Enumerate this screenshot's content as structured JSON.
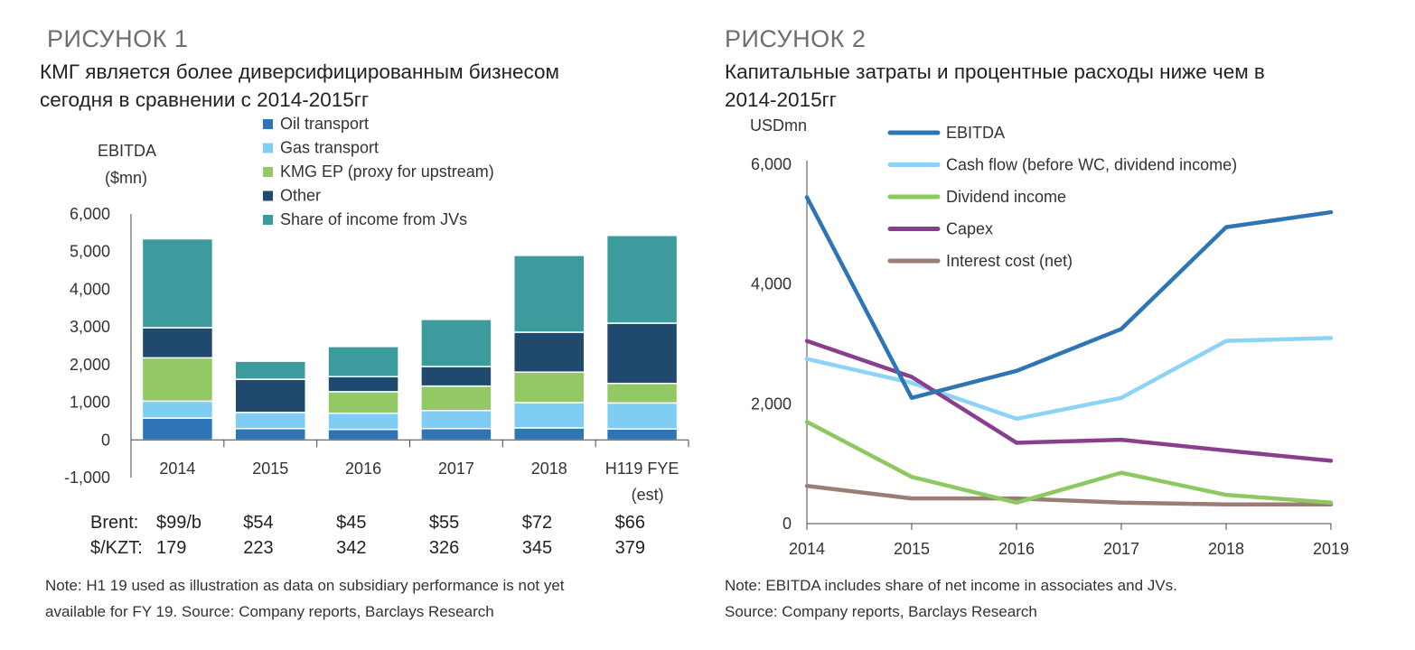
{
  "figure1": {
    "label": "РИСУНОК 1",
    "title_line1": "КМГ является более диверсифицированным бизнесом",
    "title_line2": "сегодня в сравнении с 2014-2015гг",
    "note_line1": "Note: H1 19 used as illustration as data on subsidiary performance is not yet",
    "note_line2": "available for FY 19. Source: Company reports, Barclays Research"
  },
  "figure2": {
    "label": "РИСУНОК 2",
    "title_line1": "Капитальные затраты и процентные расходы ниже чем в",
    "title_line2": "2014-2015гг",
    "note_line1": "Note: EBITDA includes share of net income in associates and JVs.",
    "note_line2": "Source: Company reports, Barclays Research"
  },
  "chart_data": [
    {
      "type": "bar",
      "stacked": true,
      "ylabel_line1": "EBITDA",
      "ylabel_line2": "($mn)",
      "ylim": [
        -1000,
        6000
      ],
      "yticks": [
        "6,000",
        "5,000",
        "4,000",
        "3,000",
        "2,000",
        "1,000",
        "0",
        "-1,000"
      ],
      "ytick_values": [
        6000,
        5000,
        4000,
        3000,
        2000,
        1000,
        0,
        -1000
      ],
      "categories": [
        "2014",
        "2015",
        "2016",
        "2017",
        "2018",
        "H119 FYE"
      ],
      "category_sublabels": [
        "",
        "",
        "",
        "",
        "",
        "(est)"
      ],
      "series": [
        {
          "name": "Oil transport",
          "color": "#2e75b6",
          "values": [
            580,
            300,
            280,
            300,
            320,
            290
          ]
        },
        {
          "name": "Gas transport",
          "color": "#7fcdf2",
          "values": [
            450,
            430,
            430,
            480,
            670,
            690
          ]
        },
        {
          "name": "KMG EP (proxy for upstream)",
          "color": "#92c965",
          "values": [
            1150,
            0,
            570,
            650,
            810,
            520
          ]
        },
        {
          "name": "Other",
          "color": "#1f4a6e",
          "values": [
            800,
            880,
            400,
            520,
            1060,
            1600
          ]
        },
        {
          "name": "Share of income from JVs",
          "color": "#3d9b9e",
          "values": [
            2360,
            480,
            800,
            1250,
            2040,
            2330
          ]
        }
      ],
      "brent_label": "Brent:",
      "brent": [
        "$99/b",
        "$54",
        "$45",
        "$55",
        "$72",
        "$66"
      ],
      "kzt_label": "$/KZT:",
      "kzt": [
        "179",
        "223",
        "342",
        "326",
        "345",
        "379"
      ],
      "legend_position": "top"
    },
    {
      "type": "line",
      "ylabel": "USDmn",
      "ylim": [
        0,
        6000
      ],
      "yticks": [
        "6,000",
        "4,000",
        "2,000",
        "0"
      ],
      "ytick_values": [
        6000,
        4000,
        2000,
        0
      ],
      "x": [
        "2014",
        "2015",
        "2016",
        "2017",
        "2018",
        "2019"
      ],
      "series": [
        {
          "name": "EBITDA",
          "color": "#2e75b6",
          "values": [
            5450,
            2100,
            2550,
            3250,
            4950,
            5200
          ]
        },
        {
          "name": "Cash flow (before WC, dividend income)",
          "color": "#8dd3f5",
          "values": [
            2750,
            2350,
            1750,
            2100,
            3050,
            3100
          ]
        },
        {
          "name": "Dividend income",
          "color": "#8ec860",
          "values": [
            1700,
            780,
            350,
            850,
            480,
            350
          ]
        },
        {
          "name": "Capex",
          "color": "#8a3f8e",
          "values": [
            3050,
            2450,
            1350,
            1400,
            1220,
            1050
          ]
        },
        {
          "name": "Interest cost (net)",
          "color": "#9a7d74",
          "values": [
            630,
            420,
            420,
            350,
            320,
            320
          ]
        }
      ],
      "legend_position": "top"
    }
  ]
}
